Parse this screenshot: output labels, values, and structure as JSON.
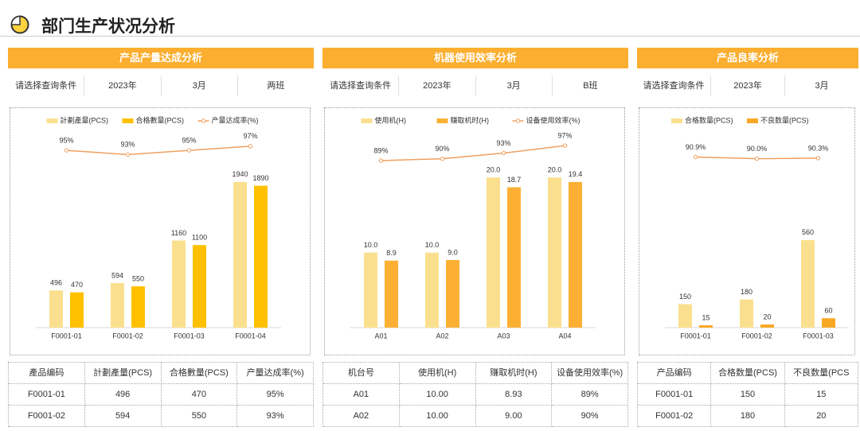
{
  "header": {
    "title": "部门生产状况分析"
  },
  "panels": [
    {
      "title": "产品产量达成分析",
      "filters": [
        "请选择查询条件",
        "2023年",
        "3月",
        "两班"
      ],
      "table": {
        "columns": [
          "產品编码",
          "計劃產量(PCS)",
          "合格數量(PCS)",
          "产量达成率(%)"
        ],
        "rows": [
          [
            "F0001-01",
            "496",
            "470",
            "95%"
          ],
          [
            "F0001-02",
            "594",
            "550",
            "93%"
          ]
        ]
      }
    },
    {
      "title": "机器使用效率分析",
      "filters": [
        "请选择查询条件",
        "2023年",
        "3月",
        "B班"
      ],
      "table": {
        "columns": [
          "机台号",
          "使用机(H)",
          "赚取机时(H)",
          "设备使用效率(%)"
        ],
        "rows": [
          [
            "A01",
            "10.00",
            "8.93",
            "89%"
          ],
          [
            "A02",
            "10.00",
            "9.00",
            "90%"
          ]
        ]
      }
    },
    {
      "title": "产品良率分析",
      "filters": [
        "请选择查询条件",
        "2023年",
        "3月"
      ],
      "table": {
        "columns": [
          "产品编码",
          "合格数量(PCS)",
          "不良数量(PCS"
        ],
        "rows": [
          [
            "F0001-01",
            "150",
            "15"
          ],
          [
            "F0001-02",
            "180",
            "20"
          ]
        ]
      }
    }
  ],
  "chart_data": [
    {
      "type": "bar",
      "categories": [
        "F0001-01",
        "F0001-02",
        "F0001-03",
        "F0001-04"
      ],
      "series": [
        {
          "name": "計劃產量(PCS)",
          "color": "#fae08e",
          "values": [
            496,
            594,
            1160,
            1940
          ]
        },
        {
          "name": "合格數量(PCS)",
          "color": "#ffc000",
          "values": [
            470,
            550,
            1100,
            1890
          ]
        },
        {
          "name": "产量达成率(%)",
          "color": "#f0a060",
          "type": "line",
          "axis": "y2",
          "values": [
            95,
            93,
            95,
            97
          ],
          "value_labels": [
            "95%",
            "93%",
            "95%",
            "97%"
          ]
        }
      ],
      "ylim": [
        0,
        2500
      ],
      "y2lim": [
        10,
        100
      ],
      "legend": "top"
    },
    {
      "type": "bar",
      "categories": [
        "A01",
        "A02",
        "A03",
        "A04"
      ],
      "series": [
        {
          "name": "使用机(H)",
          "color": "#fae08e",
          "values": [
            10,
            10,
            20,
            20
          ],
          "value_labels": [
            "10.0",
            "10.0",
            "20.0",
            "20.0"
          ]
        },
        {
          "name": "赚取机时(H)",
          "color": "#fbb034",
          "values": [
            8.93,
            9,
            18.7,
            19.4
          ],
          "value_labels": [
            "8.9",
            "9.0",
            "18.7",
            "19.4"
          ]
        },
        {
          "name": "设备使用效率(%)",
          "color": "#f0a060",
          "type": "line",
          "axis": "y2",
          "values": [
            89,
            90,
            93,
            97
          ],
          "value_labels": [
            "89%",
            "90%",
            "93%",
            "97%"
          ]
        }
      ],
      "ylim": [
        0,
        25
      ],
      "y2lim": [
        0,
        100
      ],
      "legend": "top"
    },
    {
      "type": "bar",
      "categories": [
        "F0001-01",
        "F0001-02",
        "F0001-03"
      ],
      "series": [
        {
          "name": "合格数量(PCS)",
          "color": "#fae08e",
          "values": [
            150,
            180,
            560
          ]
        },
        {
          "name": "不良数量(PCS)",
          "color": "#f9a825",
          "values": [
            15,
            20,
            60
          ]
        },
        {
          "color": "#f0a060",
          "type": "line",
          "axis": "y2",
          "values": [
            90.9,
            90.0,
            90.3
          ],
          "value_labels": [
            "90.9%",
            "90.0%",
            "90.3%"
          ]
        }
      ],
      "ylim": [
        0,
        1200
      ],
      "y2lim": [
        0,
        100
      ],
      "legend": "top"
    }
  ]
}
